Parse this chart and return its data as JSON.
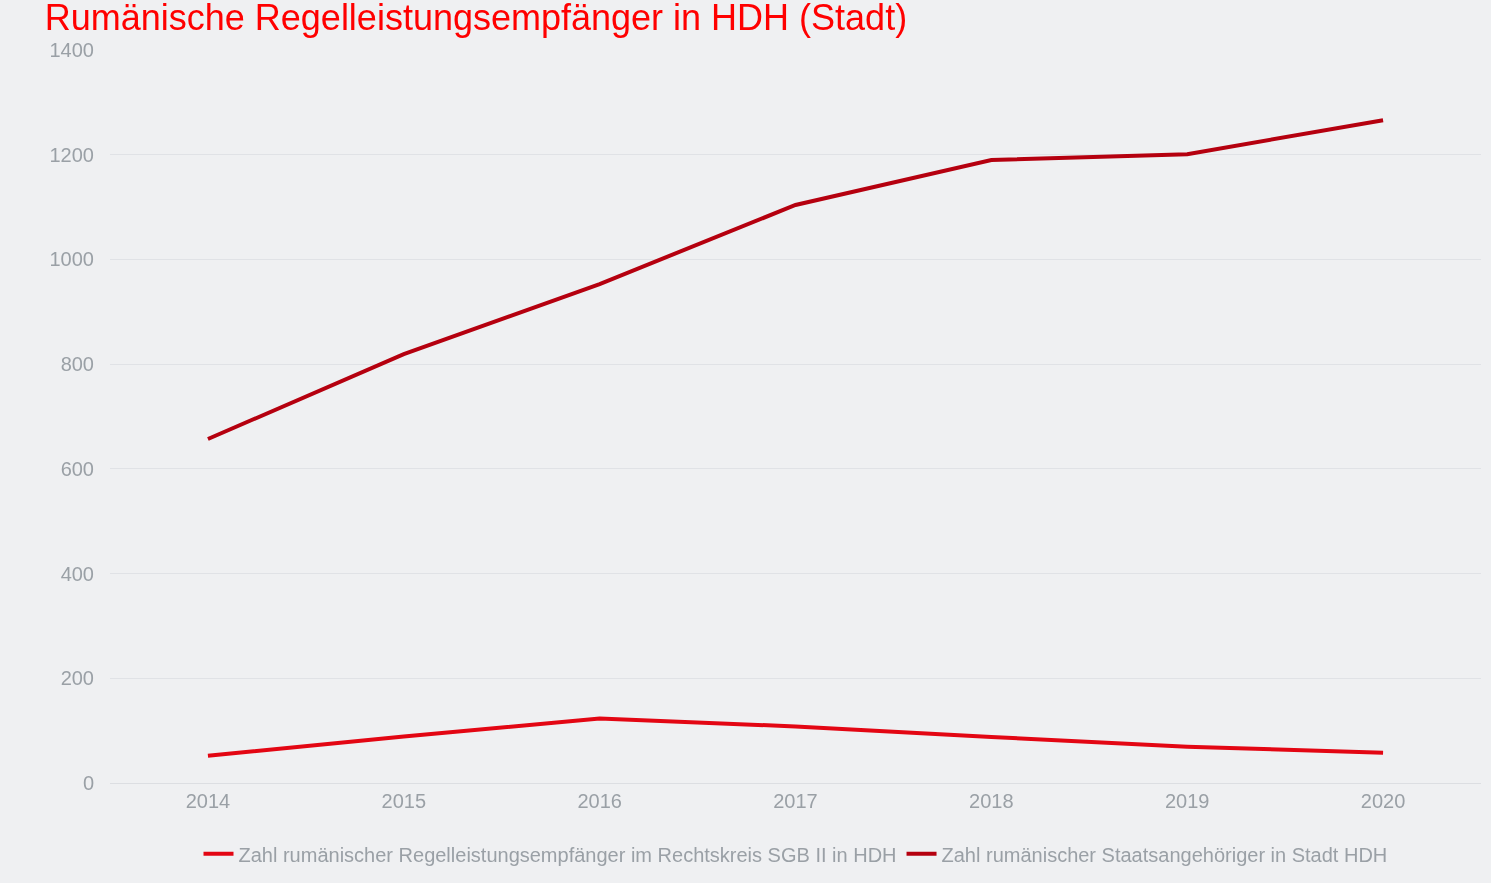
{
  "chart_data": {
    "type": "line",
    "title": "Rumänische Regelleistungsempfänger in HDH (Stadt)",
    "categories": [
      "2014",
      "2015",
      "2016",
      "2017",
      "2018",
      "2019",
      "2020"
    ],
    "series": [
      {
        "name": "Zahl rumänischer Regelleistungsempfänger im Rechtskreis SGB II in HDH",
        "color": "#e30613",
        "values": [
          52,
          89,
          123,
          108,
          88,
          69,
          58
        ]
      },
      {
        "name": "Zahl rumänischer Staatsangehöriger in Stadt HDH",
        "color": "#b5000f",
        "values": [
          657,
          819,
          953,
          1104,
          1190,
          1201,
          1266
        ]
      }
    ],
    "ylim": [
      0,
      1400
    ],
    "yticks": [
      0,
      200,
      400,
      600,
      800,
      1000,
      1200,
      1400
    ],
    "grid": "y",
    "legend": "bottom",
    "marker": "none",
    "line_style": "solid"
  }
}
